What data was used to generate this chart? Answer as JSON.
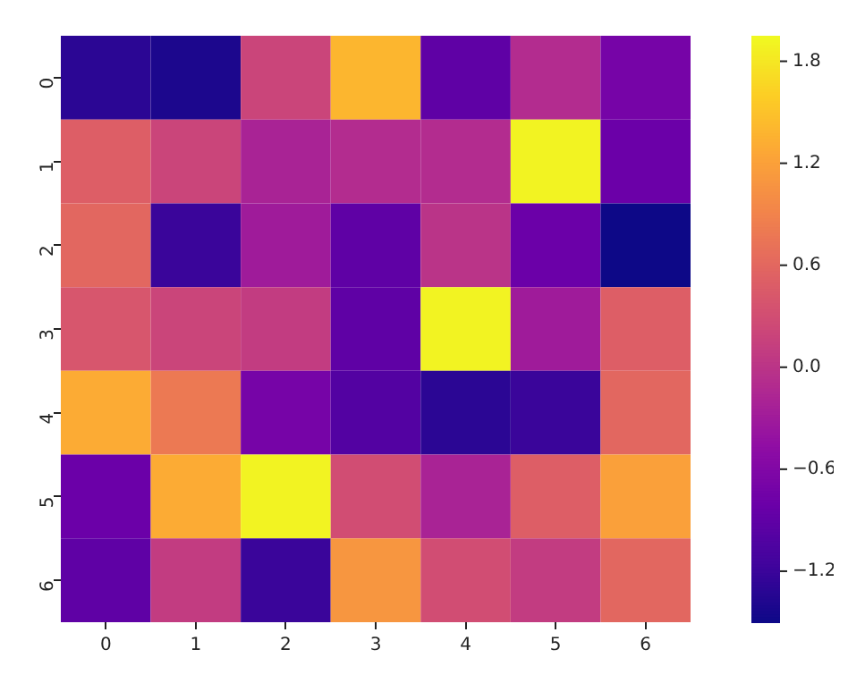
{
  "chart_data": {
    "type": "heatmap",
    "categories": [
      "0",
      "1",
      "2",
      "3",
      "4",
      "5",
      "6"
    ],
    "y_categories": [
      "0",
      "1",
      "2",
      "3",
      "4",
      "5",
      "6"
    ],
    "cells": [
      [
        -1.3,
        -1.4,
        0.2,
        1.4,
        -0.9,
        -0.1,
        -0.7
      ],
      [
        0.5,
        0.2,
        -0.2,
        -0.1,
        -0.1,
        1.9,
        -0.8
      ],
      [
        0.6,
        -1.2,
        -0.3,
        -0.9,
        0.0,
        -0.8,
        -1.5
      ],
      [
        0.4,
        0.2,
        0.1,
        -0.9,
        1.9,
        -0.3,
        0.5
      ],
      [
        1.3,
        0.8,
        -0.7,
        -1.0,
        -1.3,
        -1.2,
        0.6
      ],
      [
        -0.8,
        1.3,
        1.9,
        0.3,
        -0.2,
        0.5,
        1.2
      ],
      [
        -0.9,
        0.1,
        -1.2,
        1.1,
        0.3,
        0.1,
        0.6
      ]
    ],
    "clim": [
      -1.5,
      1.95
    ],
    "cticks": [
      {
        "value": -1.2,
        "label": "−1.2"
      },
      {
        "value": -0.6,
        "label": "−0.6"
      },
      {
        "value": 0,
        "label": "0.0"
      },
      0.6,
      1.2,
      1.8
    ]
  }
}
